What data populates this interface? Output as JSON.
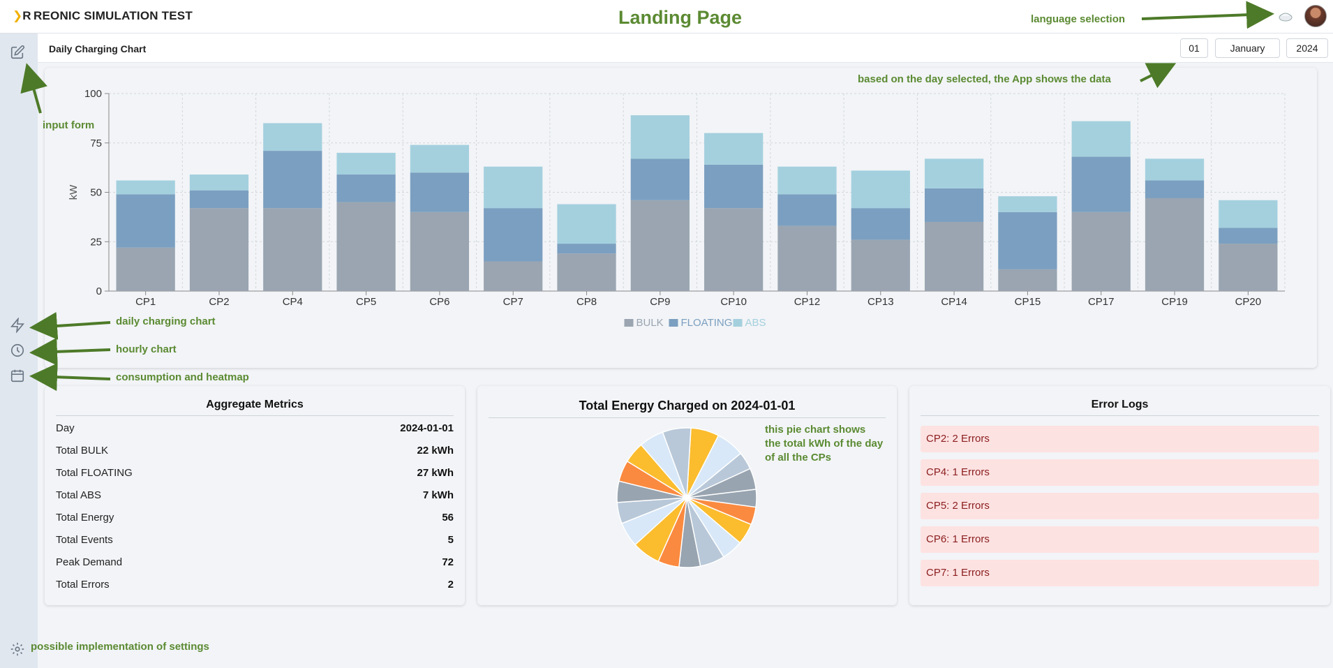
{
  "header": {
    "logo": "R",
    "app_title": "REONIC SIMULATION TEST",
    "page_title": "Landing Page",
    "language_label": "language selection"
  },
  "chart_header": {
    "title": "Daily Charging Chart",
    "day": "01",
    "month": "January",
    "year": "2024",
    "note": "based on the day selected, the App shows the data"
  },
  "sidebar_annotations": {
    "input_form": "input form",
    "daily_chart": "daily charging chart",
    "hourly_chart": "hourly chart",
    "consumption": "consumption and heatmap",
    "settings": "possible implementation of settings"
  },
  "colors": {
    "bulk": "#9aa5b1",
    "floating": "#7b9fc0",
    "abs": "#a4d0de",
    "accent": "#5b8a32"
  },
  "chart_data": {
    "type": "bar",
    "stacked": true,
    "ylabel": "kW",
    "ylim": [
      0,
      100
    ],
    "yticks": [
      0,
      25,
      50,
      75,
      100
    ],
    "grid": true,
    "legend_position": "bottom",
    "categories": [
      "CP1",
      "CP2",
      "CP4",
      "CP5",
      "CP6",
      "CP7",
      "CP8",
      "CP9",
      "CP10",
      "CP12",
      "CP13",
      "CP14",
      "CP15",
      "CP17",
      "CP19",
      "CP20"
    ],
    "series": [
      {
        "name": "BULK",
        "color": "#9aa5b1",
        "values": [
          22,
          42,
          42,
          45,
          40,
          15,
          19,
          46,
          42,
          33,
          26,
          35,
          11,
          40,
          47,
          24
        ]
      },
      {
        "name": "FLOATING",
        "color": "#7b9fc0",
        "values": [
          27,
          9,
          29,
          14,
          20,
          27,
          5,
          21,
          22,
          16,
          16,
          17,
          29,
          28,
          9,
          8
        ]
      },
      {
        "name": "ABS",
        "color": "#a4d0de",
        "values": [
          7,
          8,
          14,
          11,
          14,
          21,
          20,
          22,
          16,
          14,
          19,
          15,
          8,
          18,
          11,
          14
        ]
      }
    ]
  },
  "metrics": {
    "title": "Aggregate Metrics",
    "rows": [
      {
        "label": "Day",
        "value": "2024-01-01"
      },
      {
        "label": "Total BULK",
        "value": "22 kWh"
      },
      {
        "label": "Total FLOATING",
        "value": "27 kWh"
      },
      {
        "label": "Total ABS",
        "value": "7 kWh"
      },
      {
        "label": "Total Energy",
        "value": "56"
      },
      {
        "label": "Total Events",
        "value": "5"
      },
      {
        "label": "Peak Demand",
        "value": "72"
      },
      {
        "label": "Total Errors",
        "value": "2"
      }
    ]
  },
  "pie": {
    "title": "Total Energy Charged on 2024-01-01",
    "note_lines": [
      "this pie chart shows",
      "the total kWh of the day",
      "of all the CPs"
    ],
    "slices": [
      8,
      8,
      5,
      6,
      5,
      5,
      6,
      6,
      7,
      6,
      6,
      8,
      7,
      6,
      6,
      6,
      6,
      7,
      8
    ],
    "colors": [
      "#fbbc2e",
      "#d8e8f8",
      "#b8c8d8",
      "#98a4b0",
      "#98a4b0",
      "#fa8a40",
      "#fbbc2e",
      "#d8e8f8",
      "#b8c8d8",
      "#98a4b0",
      "#fa8a40",
      "#fbbc2e",
      "#d8e8f8",
      "#b8c8d8",
      "#98a4b0",
      "#fa8a40",
      "#fbbc2e",
      "#d8e8f8",
      "#b8c8d8"
    ]
  },
  "errors": {
    "title": "Error Logs",
    "items": [
      "CP2: 2 Errors",
      "CP4: 1 Errors",
      "CP5: 2 Errors",
      "CP6: 1 Errors",
      "CP7: 1 Errors"
    ]
  }
}
